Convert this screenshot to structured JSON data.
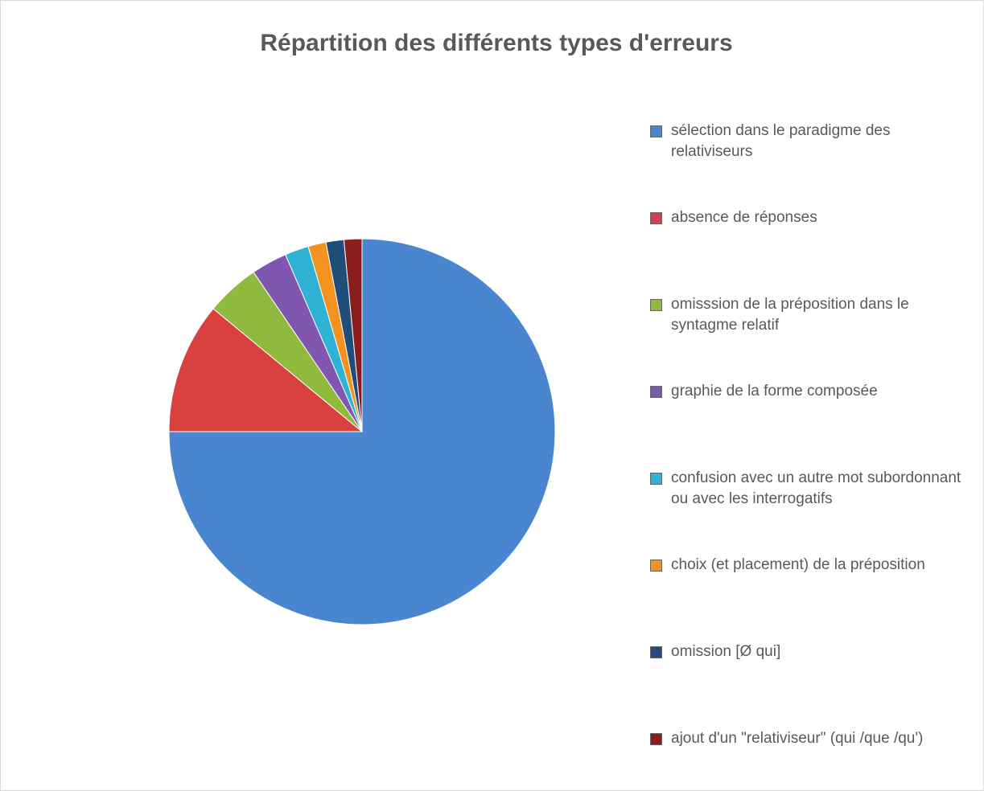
{
  "chart_data": {
    "type": "pie",
    "title": "Répartition des différents types d'erreurs",
    "categories": [
      "sélection dans le paradigme des relativiseurs",
      "absence de réponses",
      "omisssion de la préposition dans le syntagme relatif",
      "graphie de la forme composée",
      "confusion avec un autre mot subordonnant ou avec les interrogatifs",
      "choix (et placement) de la préposition",
      "omission [Ø qui]",
      "ajout d'un \"relativiseur\" (qui /que /qu')"
    ],
    "values": [
      75,
      11,
      4.5,
      3,
      2,
      1.5,
      1.5,
      1.5
    ],
    "colors": [
      "#4a86d0",
      "#d9413e",
      "#8fba3e",
      "#7f57b0",
      "#2fb3d4",
      "#f4921f",
      "#1f4e79",
      "#8b1d1d"
    ],
    "legend": "right"
  }
}
